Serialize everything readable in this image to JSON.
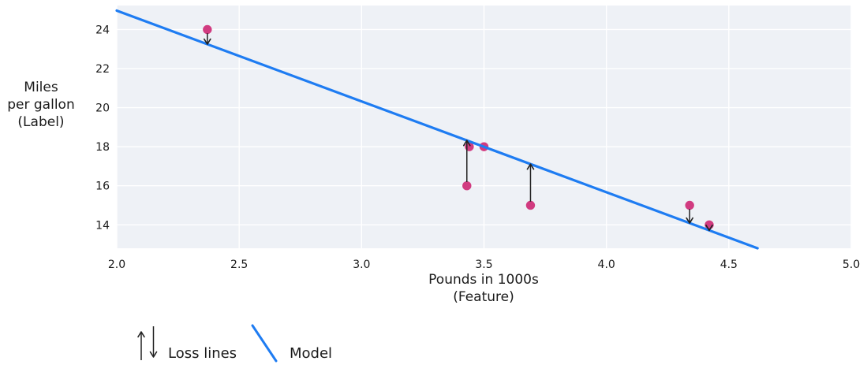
{
  "chart_data": {
    "type": "scatter",
    "title": "",
    "xlabel_lines": [
      "Pounds in 1000s",
      "(Feature)"
    ],
    "ylabel_lines": [
      "Miles",
      "per gallon",
      "(Label)"
    ],
    "xlim": [
      2.0,
      5.0
    ],
    "ylim": [
      12.8,
      25.23
    ],
    "grid": true,
    "x_ticks": [
      2.0,
      2.5,
      3.0,
      3.5,
      4.0,
      4.5,
      5.0
    ],
    "x_tick_labels": [
      "2.0",
      "2.5",
      "3.0",
      "3.5",
      "4.0",
      "4.5",
      "5.0"
    ],
    "y_ticks": [
      14,
      16,
      18,
      20,
      22,
      24
    ],
    "y_tick_labels": [
      "14",
      "16",
      "18",
      "20",
      "22",
      "24"
    ],
    "points": [
      {
        "x": 3.5,
        "y": 18,
        "loss_arrow": false
      },
      {
        "x": 3.69,
        "y": 15,
        "loss_arrow": true
      },
      {
        "x": 3.44,
        "y": 18,
        "loss_arrow": false
      },
      {
        "x": 3.43,
        "y": 16,
        "loss_arrow": true
      },
      {
        "x": 4.34,
        "y": 15,
        "loss_arrow": true
      },
      {
        "x": 4.42,
        "y": 14,
        "loss_arrow": true
      },
      {
        "x": 2.37,
        "y": 24,
        "loss_arrow": true
      }
    ],
    "model_line": {
      "slope": -4.65,
      "intercept": 34.27
    },
    "legend": [
      {
        "label": "Loss lines",
        "symbol": "loss-arrows"
      },
      {
        "label": "Model",
        "symbol": "model-line"
      }
    ],
    "colors": {
      "point": "#d13b80",
      "model": "#1e7cf2",
      "plot_background": "#eef1f6",
      "gridline": "#ffffff",
      "loss_arrow": "#222222",
      "text": "#1a1a1a"
    }
  }
}
